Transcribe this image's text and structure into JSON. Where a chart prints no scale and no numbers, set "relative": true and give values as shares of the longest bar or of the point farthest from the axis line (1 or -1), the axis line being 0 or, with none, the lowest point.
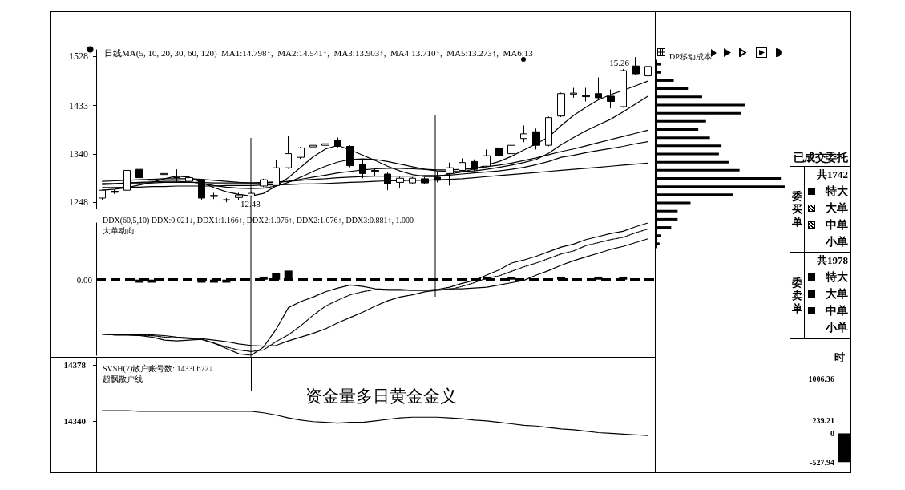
{
  "chart_data": [
    {
      "type": "candlestick",
      "title": "日线MA(5, 10, 20, 30, 60, 120)  MA1:14.798↑,  MA2:14.541↑,  MA3:13.903↑,  MA4:13.710↑,  MA5:13.273↑,  MA6:13",
      "categories": [
        null,
        null,
        null,
        null,
        null,
        null,
        null,
        null,
        null,
        null,
        null,
        null,
        null,
        null,
        null,
        null,
        null,
        null,
        null,
        null,
        null,
        null,
        null,
        null,
        null,
        null,
        null,
        null,
        null,
        null,
        null,
        null,
        null,
        null,
        null,
        null,
        null,
        null,
        null,
        null,
        null,
        null,
        null,
        null,
        null
      ],
      "ohlc": [
        [
          1256,
          1272,
          1253,
          1271
        ],
        [
          1269,
          1272,
          1264,
          1267
        ],
        [
          1271,
          1314,
          1270,
          1309
        ],
        [
          1311,
          1313,
          1293,
          1295
        ],
        [
          1292,
          1296,
          1287,
          1290
        ],
        [
          1301,
          1314,
          1298,
          1303
        ],
        [
          1295,
          1311,
          1286,
          1296
        ],
        [
          1288,
          1297,
          1287,
          1295
        ],
        [
          1291,
          1293,
          1253,
          1256
        ],
        [
          1261,
          1266,
          1254,
          1259
        ],
        [
          1252,
          1256,
          1248,
          1253
        ],
        [
          1257,
          1266,
          1252,
          1262
        ],
        [
          1260,
          1269,
          1258,
          1265
        ],
        [
          1279,
          1293,
          1277,
          1291
        ],
        [
          1280,
          1329,
          1278,
          1314
        ],
        [
          1314,
          1375,
          1312,
          1341
        ],
        [
          1334,
          1354,
          1331,
          1352
        ],
        [
          1354,
          1372,
          1348,
          1357
        ],
        [
          1357,
          1376,
          1356,
          1360
        ],
        [
          1367,
          1372,
          1353,
          1355
        ],
        [
          1355,
          1357,
          1315,
          1318
        ],
        [
          1321,
          1329,
          1294,
          1303
        ],
        [
          1309,
          1314,
          1299,
          1307
        ],
        [
          1302,
          1305,
          1271,
          1283
        ],
        [
          1286,
          1297,
          1276,
          1294
        ],
        [
          1285,
          1296,
          1283,
          1294
        ],
        [
          1293,
          1296,
          1282,
          1285
        ],
        [
          1296,
          1306,
          1286,
          1290
        ],
        [
          1303,
          1324,
          1280,
          1314
        ],
        [
          1309,
          1332,
          1306,
          1324
        ],
        [
          1326,
          1330,
          1308,
          1311
        ],
        [
          1317,
          1349,
          1315,
          1337
        ],
        [
          1352,
          1364,
          1335,
          1337
        ],
        [
          1341,
          1379,
          1339,
          1357
        ],
        [
          1370,
          1395,
          1363,
          1379
        ],
        [
          1383,
          1389,
          1349,
          1357
        ],
        [
          1357,
          1412,
          1355,
          1410
        ],
        [
          1413,
          1458,
          1411,
          1456
        ],
        [
          1455,
          1467,
          1448,
          1457
        ],
        [
          1452,
          1467,
          1441,
          1450
        ],
        [
          1456,
          1487,
          1445,
          1448
        ],
        [
          1451,
          1464,
          1428,
          1441
        ],
        [
          1431,
          1503,
          1429,
          1500
        ],
        [
          1509,
          1526,
          1492,
          1494
        ],
        [
          1490,
          1516,
          1485,
          1508
        ]
      ],
      "color": "#000000",
      "series": [
        {
          "type": "line",
          "color": "#000000",
          "values": [
            1271,
            1273,
            1276,
            1281,
            1286,
            1293,
            1298,
            1296,
            1286,
            1276,
            1268,
            1263,
            1260,
            1265,
            1279,
            1295,
            1315,
            1335,
            1350,
            1357,
            1348,
            1338,
            1328,
            1317,
            1308,
            1301,
            1297,
            1297,
            1302,
            1306,
            1312,
            1319,
            1326,
            1336,
            1348,
            1360,
            1373,
            1395,
            1414,
            1430,
            1444,
            1454,
            1462,
            1471,
            1480
          ]
        },
        {
          "type": "line",
          "color": "#000000",
          "values": [
            1282,
            1283,
            1285,
            1286,
            1287,
            1288,
            1288,
            1287,
            1284,
            1280,
            1277,
            1275,
            1274,
            1275,
            1279,
            1286,
            1296,
            1307,
            1317,
            1325,
            1330,
            1331,
            1330,
            1326,
            1321,
            1316,
            1311,
            1308,
            1307,
            1307,
            1308,
            1311,
            1315,
            1319,
            1324,
            1330,
            1342,
            1358,
            1372,
            1385,
            1396,
            1407,
            1421,
            1436,
            1451
          ]
        },
        {
          "type": "line",
          "color": "#000000",
          "values": [
            1288,
            1289,
            1290,
            1291,
            1292,
            1293,
            1293,
            1293,
            1292,
            1290,
            1288,
            1286,
            1285,
            1285,
            1286,
            1288,
            1292,
            1296,
            1300,
            1304,
            1307,
            1310,
            1312,
            1313,
            1313,
            1312,
            1311,
            1310,
            1310,
            1311,
            1313,
            1316,
            1319,
            1323,
            1328,
            1333,
            1339,
            1345,
            1350,
            1356,
            1362,
            1368,
            1374,
            1380,
            1386
          ]
        },
        {
          "type": "line",
          "color": "#000000",
          "values": [
            1284,
            1284,
            1285,
            1285,
            1285,
            1286,
            1286,
            1286,
            1286,
            1285,
            1285,
            1285,
            1285,
            1286,
            1287,
            1288,
            1290,
            1292,
            1293,
            1295,
            1296,
            1297,
            1298,
            1298,
            1298,
            1298,
            1299,
            1299,
            1300,
            1302,
            1304,
            1306,
            1308,
            1311,
            1315,
            1320,
            1326,
            1334,
            1338,
            1343,
            1347,
            1351,
            1355,
            1360,
            1364
          ]
        },
        {
          "type": "line",
          "color": "#000000",
          "values": [
            1276,
            1276,
            1277,
            1277,
            1278,
            1278,
            1279,
            1279,
            1279,
            1279,
            1280,
            1280,
            1280,
            1281,
            1281,
            1282,
            1283,
            1283,
            1284,
            1285,
            1286,
            1287,
            1288,
            1289,
            1289,
            1290,
            1290,
            1291,
            1292,
            1293,
            1295,
            1297,
            1299,
            1301,
            1303,
            1305,
            1307,
            1309,
            1311,
            1313,
            1315,
            1317,
            1319,
            1321,
            1323
          ]
        }
      ],
      "ylim": [
        1236,
        1540
      ],
      "yticks": [
        1248,
        1340,
        1433,
        1528
      ],
      "tick_labels": "y",
      "annotations": [
        "15.26",
        "12.48"
      ]
    },
    {
      "type": "line",
      "title": "DDX(60,5,10) DDX:0.021↓, DDX1:1.166↑, DDX2:1.076↑, DDX2:1.076↑, DDX3:0.881↑, 1.000",
      "subtitle": "大单动向",
      "categories": [
        null,
        null,
        null,
        null,
        null,
        null,
        null,
        null,
        null,
        null,
        null,
        null,
        null,
        null,
        null,
        null,
        null,
        null,
        null,
        null,
        null,
        null,
        null,
        null,
        null,
        null,
        null,
        null,
        null,
        null,
        null,
        null,
        null,
        null,
        null,
        null,
        null,
        null,
        null,
        null,
        null,
        null,
        null,
        null,
        null
      ],
      "relative": true,
      "series": [
        {
          "type": "bar",
          "color": "#000000",
          "values": [
            null,
            null,
            null,
            -0.04,
            -0.04,
            null,
            null,
            null,
            -0.04,
            -0.04,
            -0.04,
            null,
            null,
            0.04,
            0.09,
            0.12,
            null,
            null,
            null,
            null,
            null,
            null,
            null,
            null,
            null,
            null,
            null,
            null,
            null,
            null,
            null,
            0.04,
            null,
            0.04,
            null,
            null,
            null,
            0.04,
            null,
            null,
            0.04,
            null,
            0.04,
            null,
            null
          ]
        },
        {
          "color": "#000000",
          "values": [
            -0.72,
            -0.73,
            -0.73,
            -0.74,
            -0.76,
            -0.8,
            -0.81,
            -0.8,
            -0.79,
            -0.84,
            -0.91,
            -0.98,
            -1,
            -0.89,
            -0.66,
            -0.37,
            -0.29,
            -0.23,
            -0.16,
            -0.11,
            -0.07,
            -0.09,
            -0.12,
            -0.13,
            -0.13,
            -0.14,
            -0.14,
            -0.13,
            -0.1,
            -0.05,
            -0.01,
            0.06,
            0.13,
            0.22,
            0.26,
            0.31,
            0.37,
            0.43,
            0.47,
            0.53,
            0.57,
            0.61,
            0.64,
            0.7,
            0.75
          ]
        },
        {
          "color": "#000000",
          "line_style": "dotted",
          "values": [
            -0.72,
            -0.73,
            -0.73,
            -0.74,
            -0.74,
            -0.76,
            -0.77,
            -0.78,
            -0.79,
            -0.84,
            -0.89,
            -0.93,
            -0.95,
            -0.93,
            -0.82,
            -0.73,
            -0.61,
            -0.47,
            -0.35,
            -0.27,
            -0.2,
            -0.16,
            -0.13,
            -0.14,
            -0.14,
            -0.14,
            -0.14,
            -0.14,
            -0.13,
            -0.09,
            -0.04,
            0.02,
            0.05,
            0.11,
            0.17,
            0.22,
            0.28,
            0.34,
            0.38,
            0.45,
            0.49,
            0.53,
            0.56,
            0.62,
            0.67
          ]
        },
        {
          "color": "#000000",
          "values": [
            -0.72,
            -0.73,
            -0.73,
            -0.73,
            -0.73,
            -0.74,
            -0.76,
            -0.77,
            -0.78,
            -0.8,
            -0.82,
            -0.85,
            -0.87,
            -0.88,
            -0.87,
            -0.81,
            -0.76,
            -0.71,
            -0.65,
            -0.57,
            -0.5,
            -0.43,
            -0.35,
            -0.28,
            -0.23,
            -0.2,
            -0.16,
            -0.14,
            -0.12,
            -0.12,
            -0.11,
            -0.1,
            -0.07,
            -0.04,
            -0.01,
            0.06,
            0.12,
            0.19,
            0.25,
            0.3,
            0.35,
            0.4,
            0.44,
            0.49,
            0.54
          ]
        }
      ],
      "ref_lines": [
        {
          "axis": "y",
          "value": 0,
          "label": "0.00",
          "line_style": "dashed"
        }
      ],
      "tick_labels": false
    },
    {
      "type": "line",
      "title": "SVSH(7)散户账号数: 14330672↓.",
      "subtitle": "超飘散户线",
      "categories": [
        null,
        null,
        null,
        null,
        null,
        null,
        null,
        null,
        null,
        null,
        null,
        null,
        null,
        null,
        null,
        null,
        null,
        null,
        null,
        null,
        null,
        null,
        null,
        null,
        null,
        null,
        null,
        null,
        null,
        null,
        null,
        null,
        null,
        null,
        null,
        null,
        null,
        null,
        null,
        null,
        null,
        null,
        null,
        null,
        null
      ],
      "values": [
        14347,
        14347,
        14347,
        14346.5,
        14346.5,
        14346.5,
        14346.5,
        14346.5,
        14346.5,
        14346.5,
        14346.5,
        14346.5,
        14346.5,
        14345.5,
        14344,
        14342,
        14340.5,
        14339.5,
        14339,
        14338.5,
        14339,
        14339,
        14340,
        14341,
        14342,
        14342.5,
        14342.5,
        14342.5,
        14342,
        14341.5,
        14340.5,
        14340,
        14339,
        14338,
        14337,
        14336.5,
        14335.5,
        14334.5,
        14334,
        14333,
        14332,
        14331.5,
        14331,
        14330.5,
        14330
      ],
      "color": "#000000",
      "ylim": [
        14305,
        14383
      ],
      "yticks": [
        14340,
        14378
      ],
      "tick_labels": "y",
      "annotations": [
        "资金量多日黄金金义"
      ]
    },
    {
      "type": "bar",
      "orientation": "horizontal",
      "title": "DP移动成本",
      "categories": [
        null,
        null,
        null,
        null,
        null,
        null,
        null,
        null,
        null,
        null,
        null,
        null,
        null,
        null,
        null,
        null,
        null,
        null,
        null,
        null,
        null,
        null,
        null
      ],
      "values": [
        0.04,
        0.04,
        0.14,
        0.25,
        0.36,
        0.69,
        0.66,
        0.39,
        0.33,
        0.42,
        0.51,
        0.49,
        0.57,
        0.65,
        0.97,
        1,
        0.6,
        0.27,
        0.17,
        0.17,
        0.12,
        0.04,
        0.03
      ],
      "color": "#000000",
      "relative": true,
      "tick_labels": false
    },
    {
      "type": "other",
      "title": "已成交委托",
      "annotations": [
        "共1742",
        "委买单",
        "特大",
        "大单",
        "中单",
        "小单",
        "共1978",
        "委卖单",
        "特大",
        "大单",
        "中单",
        "小单"
      ]
    },
    {
      "type": "bar",
      "title": "时",
      "categories": [
        null
      ],
      "values": [
        -530
      ],
      "color": "#000000",
      "ylim": [
        -718,
        1737
      ],
      "yticks": [
        -527.94,
        0,
        239.21,
        1006.36
      ],
      "tick_labels": "y"
    }
  ]
}
